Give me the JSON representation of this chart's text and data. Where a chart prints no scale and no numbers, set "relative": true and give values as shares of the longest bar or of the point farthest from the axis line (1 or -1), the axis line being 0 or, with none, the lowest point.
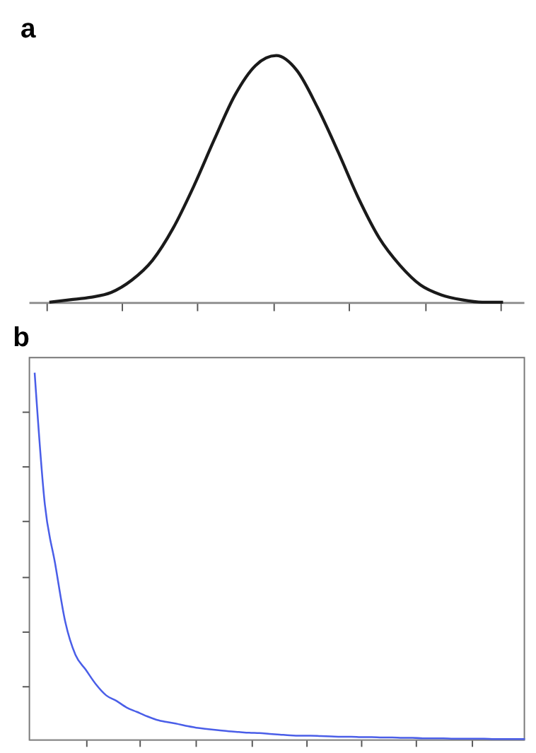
{
  "chart_data": [
    {
      "type": "line",
      "title": "a",
      "relative": true,
      "tick_labels": false,
      "grid": false,
      "marker": "none",
      "line_style": "solid",
      "categories": [
        null,
        null,
        null,
        null,
        null,
        null,
        null,
        null,
        null,
        null,
        null,
        null,
        null,
        null,
        null,
        null,
        null,
        null,
        null,
        null,
        null,
        null,
        null,
        null,
        null
      ],
      "series": [
        {
          "color": "#1a1a1a",
          "values": [
            null,
            0,
            0.01,
            0.02,
            0.04,
            0.09,
            0.17,
            0.3,
            0.47,
            0.66,
            0.84,
            0.96,
            1.0,
            0.94,
            0.79,
            0.61,
            0.42,
            0.26,
            0.15,
            0.07,
            0.03,
            0.01,
            0,
            0,
            null
          ]
        }
      ]
    },
    {
      "type": "line",
      "title": "b",
      "relative": true,
      "tick_labels": false,
      "grid": false,
      "marker": "none",
      "line_style": "solid",
      "categories": [
        null,
        null,
        null,
        null,
        null,
        null,
        null,
        null,
        null,
        null,
        null,
        null,
        null,
        null,
        null,
        null,
        null,
        null,
        null,
        null,
        null,
        null,
        null,
        null,
        null,
        null,
        null,
        null,
        null,
        null,
        null,
        null,
        null,
        null,
        null,
        null,
        null,
        null,
        null,
        null,
        null,
        null,
        null,
        null,
        null,
        null,
        null,
        null,
        null
      ],
      "series": [
        {
          "color": "#4a5ee8",
          "values": [
            1.0,
            0.64,
            0.48,
            0.32,
            0.23,
            0.19,
            0.15,
            0.12,
            0.105,
            0.087,
            0.075,
            0.063,
            0.053,
            0.047,
            0.042,
            0.036,
            0.031,
            0.028,
            0.025,
            0.022,
            0.02,
            0.018,
            0.017,
            0.015,
            0.013,
            0.011,
            0.01,
            0.01,
            0.009,
            0.008,
            0.007,
            0.007,
            0.006,
            0.006,
            0.005,
            0.005,
            0.004,
            0.004,
            0.003,
            0.003,
            0.003,
            0.002,
            0.002,
            0.002,
            0.002,
            0.001,
            0.001,
            0.001,
            0.001
          ]
        }
      ]
    }
  ]
}
